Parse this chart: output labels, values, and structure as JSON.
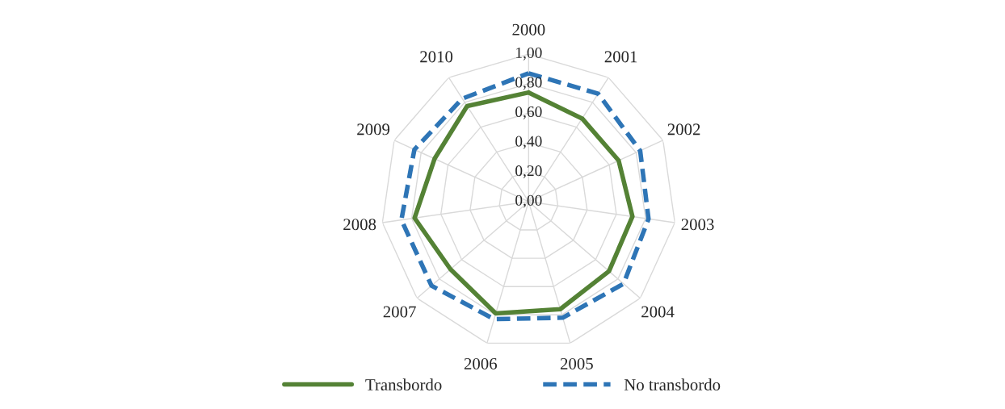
{
  "chart_data": {
    "type": "radar",
    "categories": [
      "2000",
      "2001",
      "2002",
      "2003",
      "2004",
      "2005",
      "2006",
      "2007",
      "2008",
      "2009",
      "2010"
    ],
    "ylim": [
      0,
      1
    ],
    "yticks": [
      {
        "value": 0,
        "label": "0,00"
      },
      {
        "value": 0.2,
        "label": "0,20"
      },
      {
        "value": 0.4,
        "label": "0,40"
      },
      {
        "value": 0.6,
        "label": "0,60"
      },
      {
        "value": 0.8,
        "label": "0,80"
      },
      {
        "value": 1,
        "label": "1,00"
      }
    ],
    "grid": true,
    "legend": "bottom",
    "series": [
      {
        "name": "Transbordo",
        "color": "#548235",
        "line_style": "solid",
        "values": [
          0.74,
          0.67,
          0.67,
          0.71,
          0.72,
          0.76,
          0.79,
          0.7,
          0.78,
          0.7,
          0.77
        ]
      },
      {
        "name": "No transbordo",
        "color": "#2e75b6",
        "line_style": "dashed",
        "values": [
          0.87,
          0.87,
          0.83,
          0.82,
          0.85,
          0.82,
          0.83,
          0.87,
          0.87,
          0.85,
          0.83
        ]
      }
    ]
  }
}
